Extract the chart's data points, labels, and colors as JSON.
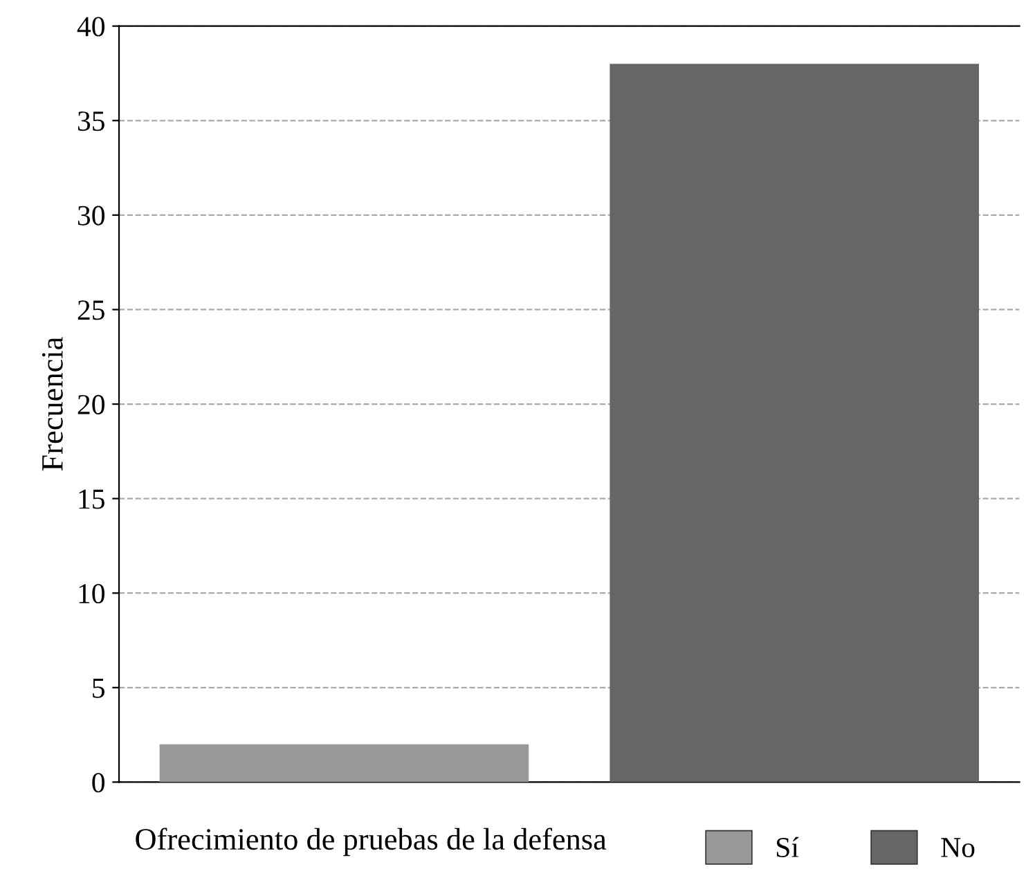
{
  "chart_data": {
    "type": "bar",
    "ylabel": "Frecuencia",
    "legend_title": "Ofrecimiento de pruebas de la defensa",
    "categories": [
      null,
      null
    ],
    "series": [
      {
        "name": "Sí",
        "color": "#999999",
        "values": [
          2,
          null
        ]
      },
      {
        "name": "No",
        "color": "#666666",
        "values": [
          null,
          38
        ]
      }
    ],
    "ylim": [
      0,
      40
    ],
    "yticks": [
      0,
      5,
      10,
      15,
      20,
      25,
      30,
      35,
      40
    ],
    "grid": "y",
    "legend": "bottom"
  }
}
